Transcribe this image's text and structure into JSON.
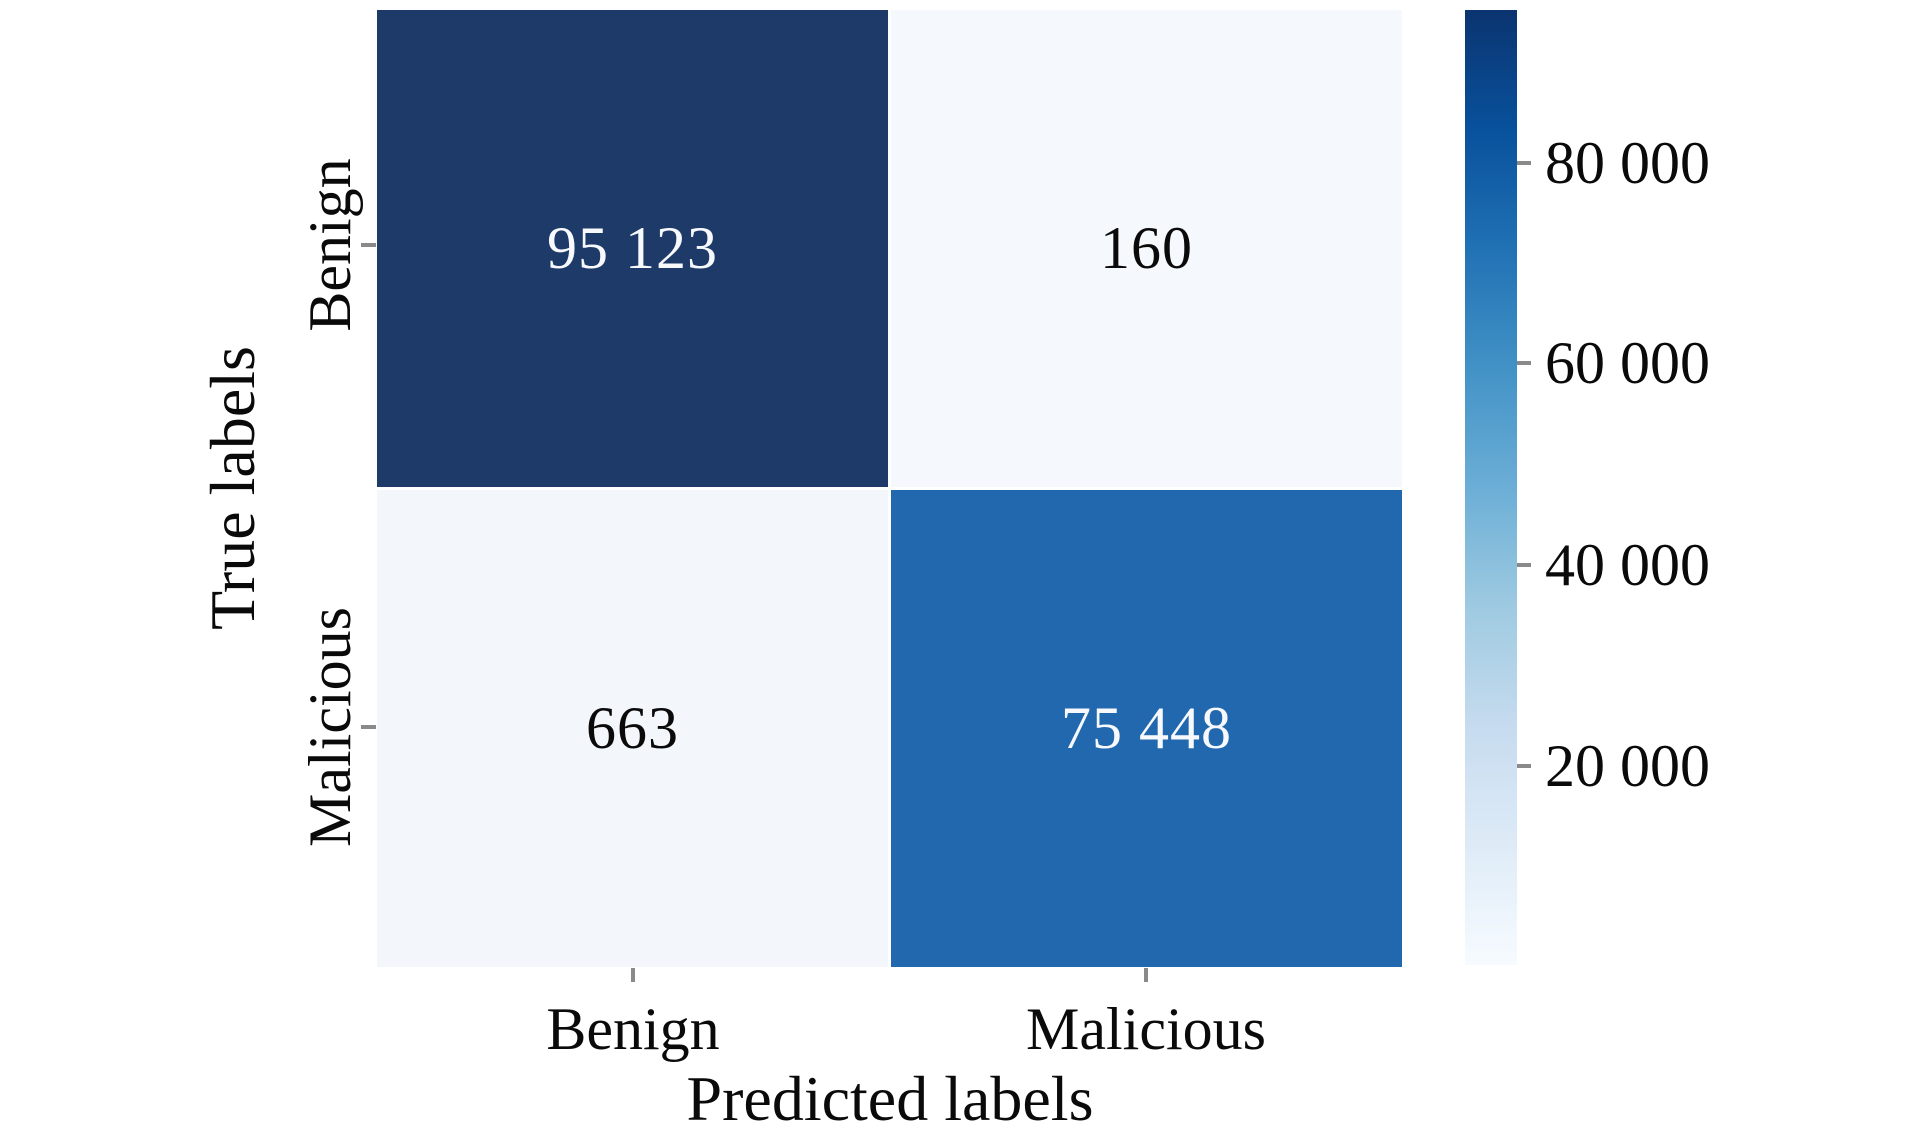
{
  "figure_title": "",
  "axes": {
    "xlabel": "Predicted labels",
    "ylabel": "True labels",
    "x_tick_labels": [
      "Benign",
      "Malicious"
    ],
    "y_tick_labels": [
      "Benign",
      "Malicious"
    ]
  },
  "cells": [
    {
      "true_label": "Benign",
      "predicted_label": "Benign",
      "display": "95 123",
      "value": 95123,
      "color": "#1e3a68",
      "text_color": "#f7f9fc"
    },
    {
      "true_label": "Benign",
      "predicted_label": "Malicious",
      "display": "160",
      "value": 160,
      "color": "#f5f8fc",
      "text_color": "#0a0a0a"
    },
    {
      "true_label": "Malicious",
      "predicted_label": "Benign",
      "display": "663",
      "value": 663,
      "color": "#f3f6fa",
      "text_color": "#0a0a0a"
    },
    {
      "true_label": "Malicious",
      "predicted_label": "Malicious",
      "display": "75 448",
      "value": 75448,
      "color": "#2268ae",
      "text_color": "#f7f9fc"
    }
  ],
  "colorbar": {
    "tick_labels": [
      "80 000",
      "60 000",
      "40 000",
      "20 000"
    ],
    "tick_values": [
      80000,
      60000,
      40000,
      20000
    ],
    "min": 0,
    "max": 95123,
    "colormap": "Blues",
    "gradient_stops_bottom_to_top": [
      "#f7fbff",
      "#deebf7",
      "#c6dbef",
      "#9ecae1",
      "#6baed6",
      "#4292c6",
      "#2171b5",
      "#08519c",
      "#0b3470"
    ]
  },
  "colors": {
    "tick_mark": "#8a8a8a",
    "background": "#ffffff"
  },
  "chart_data": {
    "type": "heatmap",
    "title": "",
    "xlabel": "Predicted labels",
    "ylabel": "True labels",
    "x_categories": [
      "Benign",
      "Malicious"
    ],
    "y_categories": [
      "Benign",
      "Malicious"
    ],
    "matrix": [
      [
        95123,
        160
      ],
      [
        663,
        75448
      ]
    ],
    "cell_text": [
      [
        "95 123",
        "160"
      ],
      [
        "663",
        "75 448"
      ]
    ],
    "colormap": "Blues",
    "vmin": 0,
    "vmax": 95123,
    "colorbar_ticks": [
      20000,
      40000,
      60000,
      80000
    ],
    "colorbar_tick_labels": [
      "20 000",
      "40 000",
      "60 000",
      "80 000"
    ],
    "colorbar_position": "right",
    "grid": false,
    "legend": false
  }
}
